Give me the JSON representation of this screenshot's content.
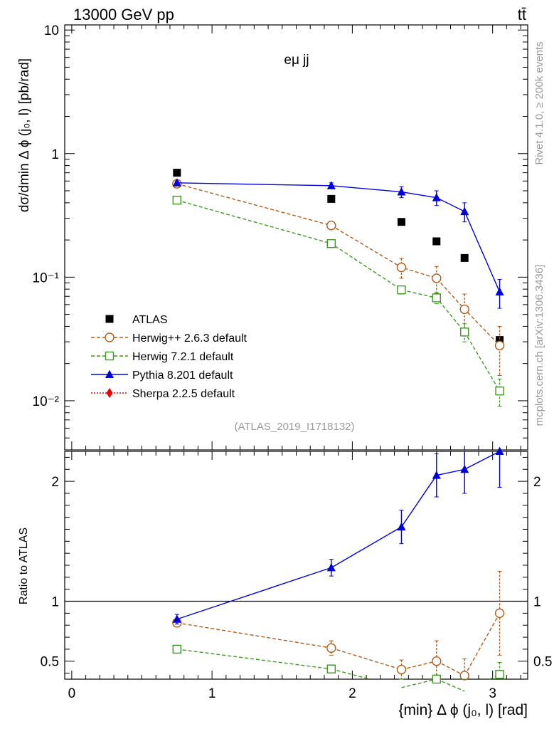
{
  "header": {
    "energy": "13000 GeV pp",
    "process": "tt̄",
    "channel": "eμ jj",
    "analysis_id": "(ATLAS_2019_I1718132)"
  },
  "side_text": {
    "rivet": "Rivet 4.1.0, ≥ 200k events",
    "mcplots": "mcplots.cern.ch [arXiv:1306.3436]"
  },
  "chart_data": {
    "type": "scatter",
    "title": "eμ jj",
    "xlabel": "{min} Δ ϕ (j₀, l) [rad]",
    "ylabel": "dσ/dmin Δ ϕ (j₀, l) [pb/rad]",
    "ratio_ylabel": "Ratio to ATLAS",
    "xlim": [
      -0.05,
      3.25
    ],
    "ylim": [
      0.004,
      11
    ],
    "ylog": true,
    "ratio_ylim": [
      0.35,
      2.25
    ],
    "x_ticks": [
      "0",
      "1",
      "2",
      "3"
    ],
    "y_ticks": [
      "10",
      "1",
      "10⁻¹",
      "10⁻²"
    ],
    "ratio_ticks": [
      "0.5",
      "1",
      "2"
    ],
    "x": [
      0.75,
      1.85,
      2.35,
      2.6,
      2.8,
      3.05
    ],
    "legend_position": "bottom-left",
    "series": [
      {
        "name": "ATLAS",
        "color": "#000000",
        "marker": "filled-square",
        "values": [
          0.7,
          0.43,
          0.28,
          0.195,
          0.143,
          0.031
        ]
      },
      {
        "name": "Herwig++ 2.6.3 default",
        "color": "#b35a1a",
        "marker": "open-circle",
        "dashed": true,
        "values": [
          0.57,
          0.262,
          0.12,
          0.098,
          0.055,
          0.028
        ],
        "errors": [
          0.015,
          0.015,
          0.022,
          0.024,
          0.018,
          0.012
        ],
        "ratio": [
          0.82,
          0.61,
          0.43,
          0.5,
          0.38,
          0.9
        ],
        "ratio_errors": [
          0.03,
          0.06,
          0.08,
          0.17,
          0.14,
          0.35
        ]
      },
      {
        "name": "Herwig 7.2.1 default",
        "color": "#3c9a1e",
        "marker": "open-square",
        "dashed": true,
        "values": [
          0.42,
          0.187,
          0.079,
          0.068,
          0.036,
          0.012
        ],
        "errors": [
          0.01,
          0.008,
          0.006,
          0.007,
          0.006,
          0.003
        ],
        "ratio": [
          0.6,
          0.435,
          0.28,
          0.35,
          0.25,
          0.39
        ],
        "ratio_errors": [
          0.01,
          0.015,
          0.02,
          0.035,
          0.04,
          0.1
        ]
      },
      {
        "name": "Pythia 8.201 default",
        "color": "#0000dd",
        "marker": "filled-triangle",
        "dashed": false,
        "values": [
          0.58,
          0.55,
          0.49,
          0.44,
          0.34,
          0.076
        ],
        "errors": [
          0.02,
          0.03,
          0.05,
          0.06,
          0.06,
          0.02
        ],
        "ratio": [
          0.85,
          1.28,
          1.62,
          2.05,
          2.1,
          2.25
        ],
        "ratio_errors": [
          0.04,
          0.07,
          0.14,
          0.18,
          0.2,
          0.3
        ]
      },
      {
        "name": "Sherpa 2.2.5 default",
        "color": "#ee0000",
        "marker": "filled-diamond",
        "dotted": true,
        "values": [],
        "errors": []
      }
    ]
  }
}
